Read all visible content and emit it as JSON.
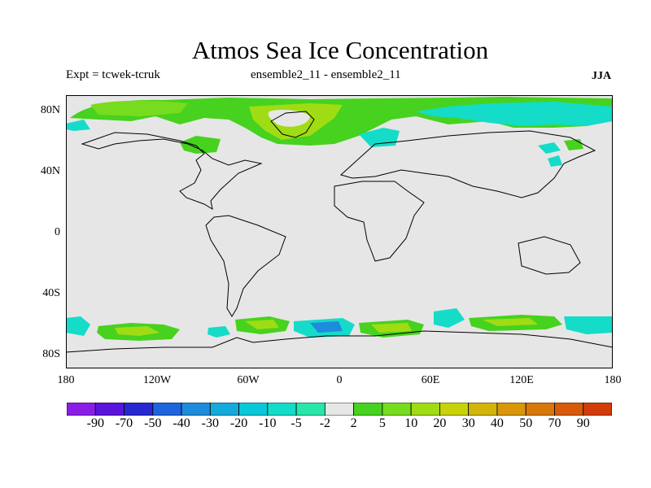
{
  "title": "Atmos Sea Ice Concentration",
  "subtitle_left": "Expt = tcwek-tcruk",
  "subtitle_center": "ensemble2_11 - ensemble2_11",
  "subtitle_right": "JJA",
  "lat_labels": [
    "80N",
    "40N",
    "0",
    "40S",
    "80S"
  ],
  "lon_labels": [
    "180",
    "120W",
    "60W",
    "0",
    "60E",
    "120E",
    "180"
  ],
  "colorbar": {
    "levels": [
      "-90",
      "-70",
      "-50",
      "-40",
      "-30",
      "-20",
      "-10",
      "-5",
      "-2",
      "2",
      "5",
      "10",
      "20",
      "30",
      "40",
      "50",
      "70",
      "90"
    ],
    "colors": [
      "#8a1ee6",
      "#5a14dc",
      "#2828d2",
      "#1e64dc",
      "#1e8cdc",
      "#14aadc",
      "#0ac8d8",
      "#14dcc8",
      "#28e6aa",
      "#e6e6e6",
      "#46d21e",
      "#78dc1e",
      "#a0dc14",
      "#c8d20a",
      "#d2b40a",
      "#d89608",
      "#d8780a",
      "#d85a0a",
      "#d23c0a"
    ]
  },
  "map_data": {
    "background_color": "#e6e6e6",
    "coastline_color": "#000000",
    "lon_range": [
      -180,
      180
    ],
    "lat_range": [
      -90,
      90
    ]
  }
}
